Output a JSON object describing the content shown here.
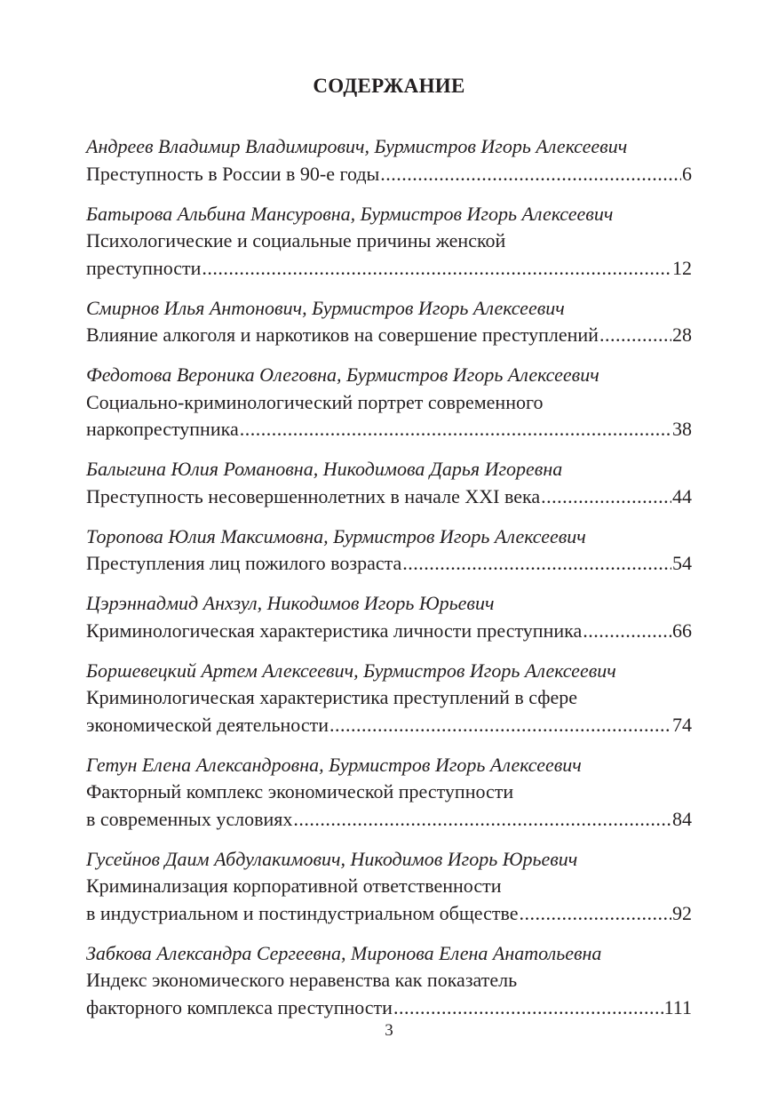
{
  "heading": "СОДЕРЖАНИЕ",
  "entries": [
    {
      "author": "Андреев Владимир Владимирович, Бурмистров Игорь Алексеевич",
      "lines": [],
      "last_line": "Преступность в России в 90-е годы",
      "page": "6"
    },
    {
      "author": "Батырова Альбина Мансуровна, Бурмистров Игорь Алексеевич",
      "lines": [
        "Психологические и социальные причины женской"
      ],
      "last_line": "преступности",
      "page": "12"
    },
    {
      "author": "Смирнов Илья Антонович, Бурмистров Игорь Алексеевич",
      "lines": [],
      "last_line": "Влияние алкоголя и наркотиков на совершение преступлений",
      "page": "28"
    },
    {
      "author": "Федотова Вероника Олеговна, Бурмистров Игорь Алексеевич",
      "lines": [
        "Социально-криминологический портрет современного"
      ],
      "last_line": "наркопреступника",
      "page": "38"
    },
    {
      "author": "Балыгина Юлия Романовна, Никодимова Дарья Игоревна",
      "lines": [],
      "last_line": "Преступность несовершеннолетних в начале XXI века",
      "page": "44"
    },
    {
      "author": "Торопова Юлия Максимовна, Бурмистров Игорь Алексеевич",
      "lines": [],
      "last_line": "Преступления лиц пожилого возраста",
      "page": "54"
    },
    {
      "author": "Цэрэннадмид Анхзул, Никодимов Игорь Юрьевич",
      "lines": [],
      "last_line": "Криминологическая характеристика личности преступника",
      "page": "66"
    },
    {
      "author": "Боршевецкий Артем Алексеевич, Бурмистров Игорь Алексеевич",
      "lines": [
        "Криминологическая характеристика преступлений в сфере"
      ],
      "last_line": "экономической деятельности",
      "page": "74"
    },
    {
      "author": "Гетун Елена Александровна, Бурмистров Игорь Алексеевич",
      "lines": [
        "Факторный комплекс экономической преступности"
      ],
      "last_line": "в современных условиях",
      "page": "84"
    },
    {
      "author": "Гусейнов Даим Абдулакимович, Никодимов Игорь Юрьевич",
      "lines": [
        "Криминализация корпоративной ответственности"
      ],
      "last_line": "в индустриальном и постиндустриальном обществе",
      "page": "92"
    },
    {
      "author": "Забкова Александра Сергеевна, Миронова Елена Анатольевна",
      "lines": [
        "Индекс экономического неравенства как показатель"
      ],
      "last_line": "факторного комплекса преступности",
      "page": "111"
    }
  ],
  "page_number": "3"
}
